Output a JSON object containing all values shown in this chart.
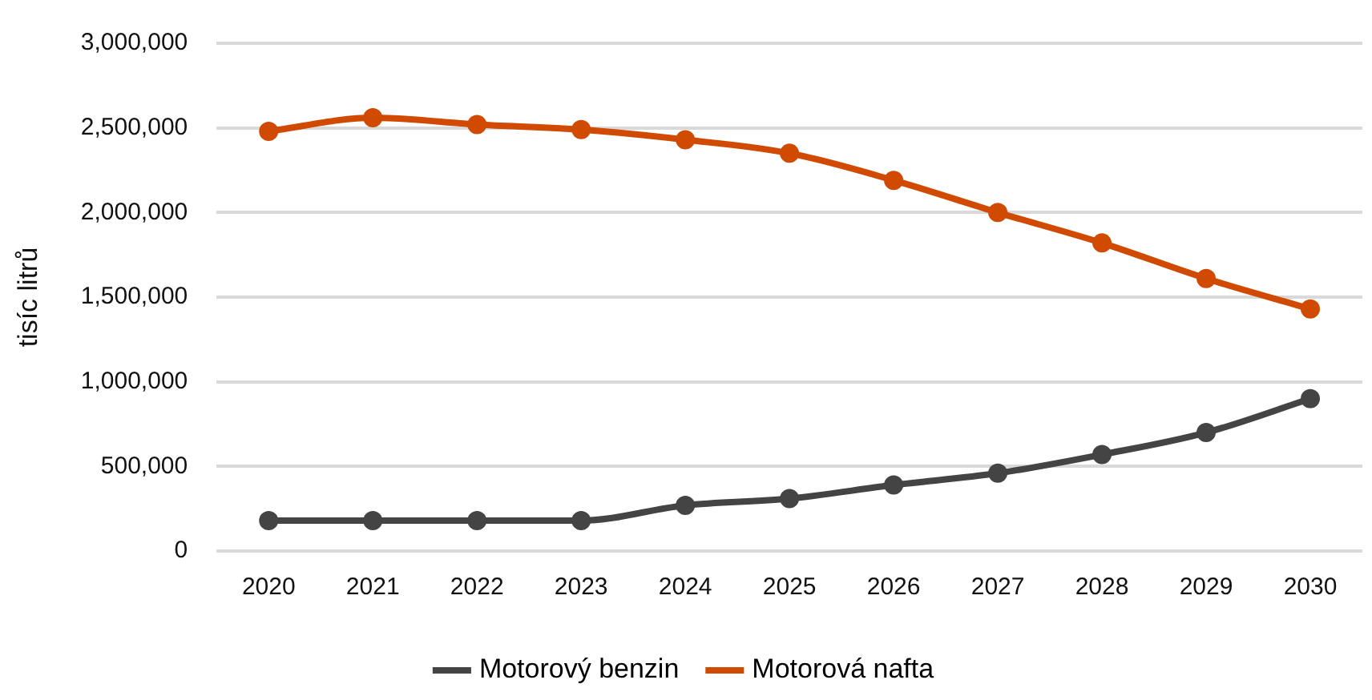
{
  "chart_data": {
    "type": "line",
    "ylabel": "tisíc litrů",
    "categories": [
      "2020",
      "2021",
      "2022",
      "2023",
      "2024",
      "2025",
      "2026",
      "2027",
      "2028",
      "2029",
      "2030"
    ],
    "series": [
      {
        "name": "Motorový benzin",
        "color": "#444444",
        "values": [
          180000,
          180000,
          180000,
          180000,
          270000,
          310000,
          390000,
          460000,
          570000,
          700000,
          900000
        ]
      },
      {
        "name": "Motorová nafta",
        "color": "#d04a02",
        "values": [
          2480000,
          2560000,
          2520000,
          2490000,
          2430000,
          2350000,
          2190000,
          2000000,
          1820000,
          1610000,
          1430000
        ]
      }
    ],
    "ylim": [
      0,
      3000000
    ],
    "yticks": [
      {
        "value": 0,
        "label": "0"
      },
      {
        "value": 500000,
        "label": "500,000"
      },
      {
        "value": 1000000,
        "label": "1,000,000"
      },
      {
        "value": 1500000,
        "label": "1,500,000"
      },
      {
        "value": 2000000,
        "label": "2,000,000"
      },
      {
        "value": 2500000,
        "label": "2,500,000"
      },
      {
        "value": 3000000,
        "label": "3,000,000"
      }
    ],
    "grid": "y",
    "legend": "bottom",
    "marker": "circle",
    "line_style": "solid"
  }
}
